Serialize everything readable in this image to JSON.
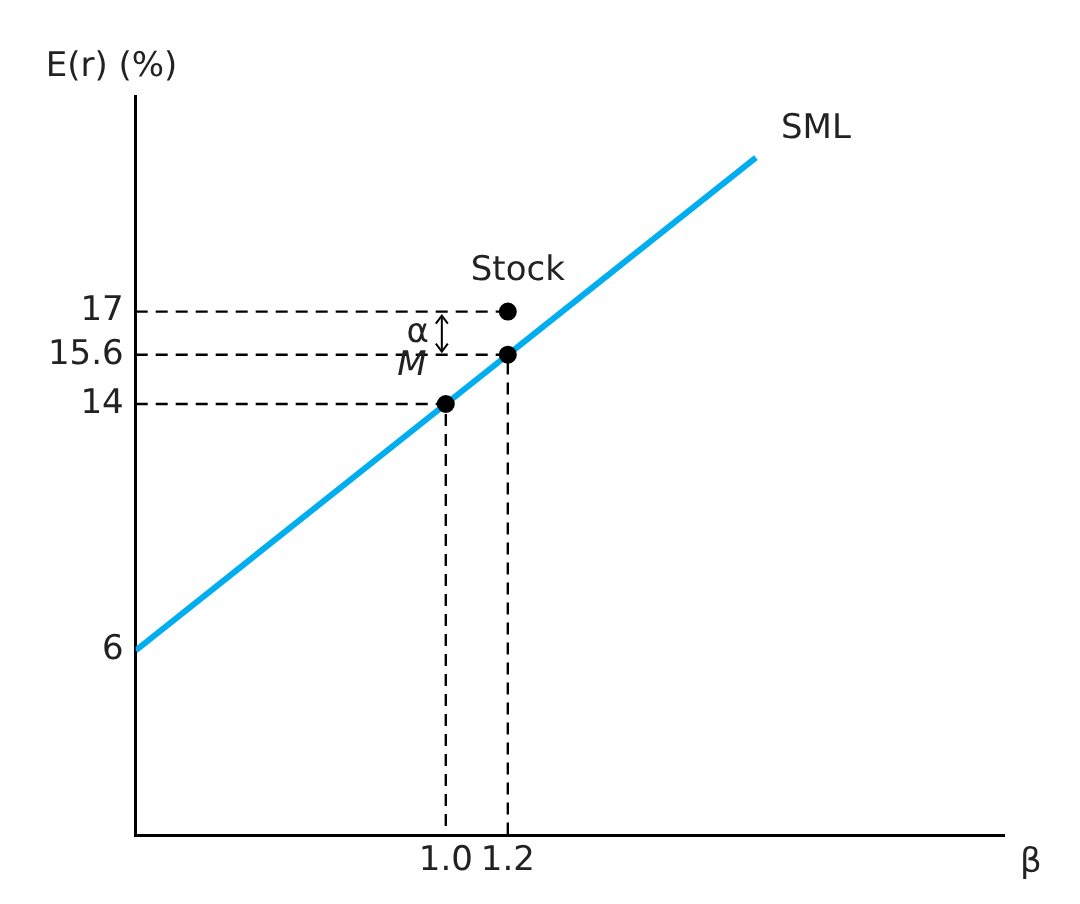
{
  "chart_data": {
    "type": "line",
    "xlabel": "β",
    "ylabel": "E(r) (%)",
    "xlim": [
      0,
      2.8
    ],
    "ylim": [
      0,
      24
    ],
    "xticks": [
      {
        "value": 1.0,
        "label": "1.0"
      },
      {
        "value": 1.2,
        "label": "1.2"
      }
    ],
    "yticks": [
      6,
      14,
      15.6,
      17
    ],
    "grid": false,
    "legend": false,
    "series": [
      {
        "type": "line",
        "x": [
          0,
          2.0
        ],
        "values": [
          6,
          22
        ],
        "color": "#00aeef",
        "marker": "none",
        "line_style": "solid"
      },
      {
        "type": "line",
        "x": [
          0,
          1.0,
          1.0
        ],
        "values": [
          14,
          14,
          0
        ],
        "color": "#000000",
        "marker": "none",
        "line_style": "dashed"
      },
      {
        "type": "line",
        "x": [
          0,
          1.2,
          1.2
        ],
        "values": [
          15.6,
          15.6,
          0
        ],
        "color": "#000000",
        "marker": "none",
        "line_style": "dashed"
      },
      {
        "type": "line",
        "x": [
          0,
          1.2
        ],
        "values": [
          17,
          17
        ],
        "color": "#000000",
        "marker": "none",
        "line_style": "dashed"
      },
      {
        "type": "scatter",
        "x": [
          1.0,
          1.2,
          1.2
        ],
        "values": [
          14,
          17,
          15.6
        ],
        "color": "#000000",
        "marker": "circle"
      }
    ],
    "annotations": [
      {
        "text": "SML",
        "x": 2.0,
        "y": 22
      },
      {
        "text": "Stock",
        "x": 1.2,
        "y": 17
      },
      {
        "text": "M",
        "x": 1.0,
        "y": 14
      },
      {
        "text": "α",
        "x": 1.2,
        "y": 17
      }
    ]
  }
}
